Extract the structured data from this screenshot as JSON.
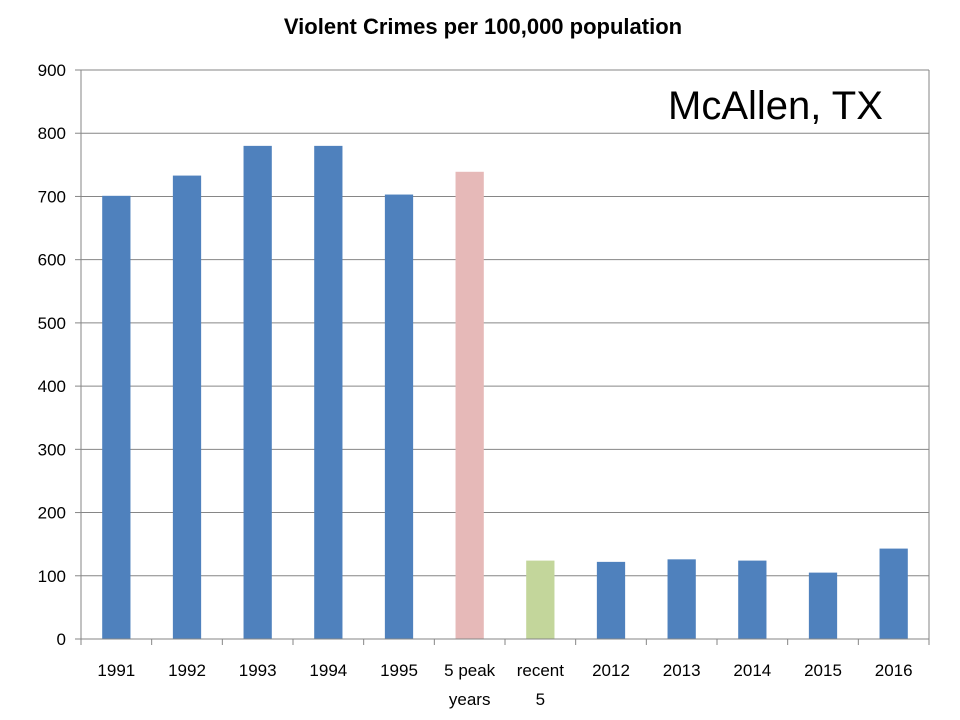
{
  "chart_data": {
    "type": "bar",
    "title": "Violent Crimes per 100,000 population",
    "annotation": "McAllen, TX",
    "xlabel": "",
    "ylabel": "",
    "categories": [
      "1991",
      "1992",
      "1993",
      "1994",
      "1995",
      "5 peak years",
      "recent 5",
      "2012",
      "2013",
      "2014",
      "2015",
      "2016"
    ],
    "category_lines": [
      [
        "1991"
      ],
      [
        "1992"
      ],
      [
        "1993"
      ],
      [
        "1994"
      ],
      [
        "1995"
      ],
      [
        "5 peak",
        "years"
      ],
      [
        "recent",
        "5"
      ],
      [
        "2012"
      ],
      [
        "2013"
      ],
      [
        "2014"
      ],
      [
        "2015"
      ],
      [
        "2016"
      ]
    ],
    "values": [
      701,
      733,
      780,
      780,
      703,
      739,
      124,
      122,
      126,
      124,
      105,
      143
    ],
    "bar_colors": [
      "#4f81bd",
      "#4f81bd",
      "#4f81bd",
      "#4f81bd",
      "#4f81bd",
      "#e6b9b8",
      "#c3d69b",
      "#4f81bd",
      "#4f81bd",
      "#4f81bd",
      "#4f81bd",
      "#4f81bd"
    ],
    "yticks": [
      0,
      100,
      200,
      300,
      400,
      500,
      600,
      700,
      800,
      900
    ],
    "ylim": [
      0,
      900
    ],
    "grid": true,
    "legend": "none"
  }
}
